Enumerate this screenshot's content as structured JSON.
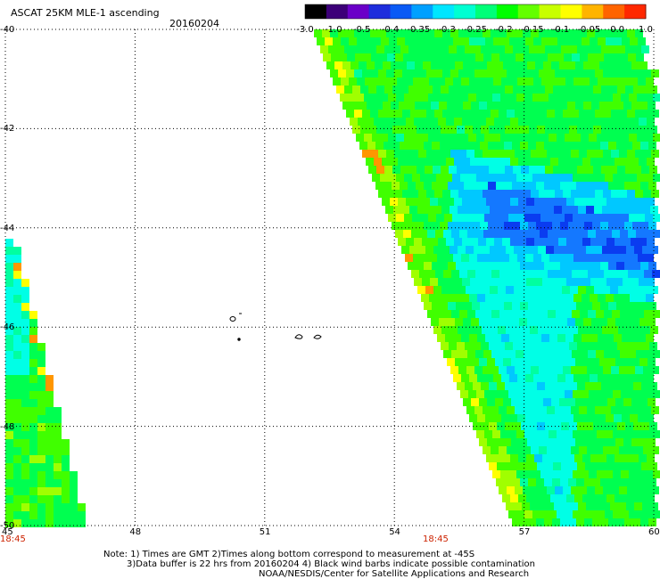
{
  "header": {
    "title": "ASCAT 25KM MLE-1 ascending",
    "date": "20160204"
  },
  "colorbar": {
    "labels": [
      "-3.0",
      "-1.0",
      "-0.5",
      "-0.4",
      "-0.35",
      "-0.3",
      "-0.25",
      "-0.2",
      "-0.15",
      "-0.1",
      "-0.05",
      "0.0",
      "1.0"
    ],
    "colors": [
      "#000000",
      "#3c0078",
      "#6a00c8",
      "#1e2ddc",
      "#0a5af5",
      "#00a0ff",
      "#00e6ff",
      "#00ffd2",
      "#00ff78",
      "#00ff00",
      "#64ff00",
      "#c8ff00",
      "#ffff00",
      "#ffb400",
      "#ff6400",
      "#ff2800"
    ]
  },
  "axes": {
    "lon_ticks": [
      "45",
      "48",
      "51",
      "54",
      "57",
      "60"
    ],
    "lat_ticks": [
      "-40",
      "-42",
      "-44",
      "-46",
      "-48",
      "-50"
    ],
    "lon_range": [
      45,
      60
    ],
    "lat_range": [
      -40,
      -50
    ]
  },
  "time_labels": {
    "left": "18:45",
    "right": "18:45"
  },
  "notes": {
    "line1": "Note: 1) Times are GMT 2)Times along bottom correspond to measurement at -45S",
    "line2": "3)Data buffer is 22 hrs from 20160204 4) Black wind barbs indicate possible contamination",
    "line3": "NOAA/NESDIS/Center for Satellite Applications and Research"
  }
}
